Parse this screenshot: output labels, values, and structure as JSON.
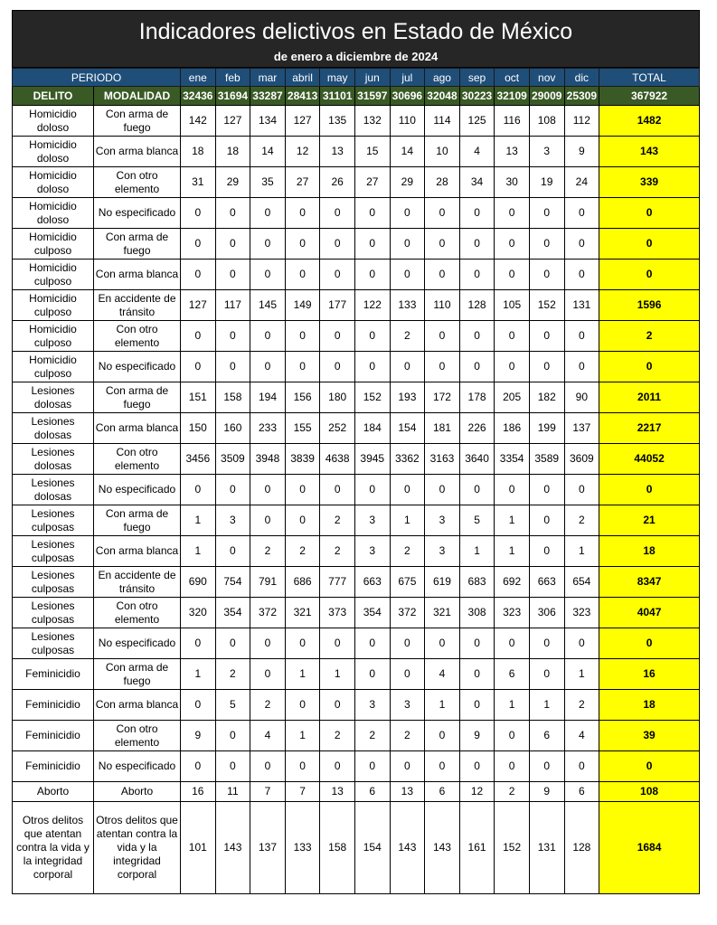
{
  "title": "Indicadores delictivos en Estado de México",
  "subtitle": "de enero a diciembre de 2024",
  "header": {
    "periodo": "PERIODO",
    "months": [
      "ene",
      "feb",
      "mar",
      "abril",
      "may",
      "jun",
      "jul",
      "ago",
      "sep",
      "oct",
      "nov",
      "dic"
    ],
    "total": "TOTAL"
  },
  "totals_row": {
    "delito": "DELITO",
    "modalidad": "MODALIDAD",
    "values": [
      "32436",
      "31694",
      "33287",
      "28413",
      "31101",
      "31597",
      "30696",
      "32048",
      "30223",
      "32109",
      "29009",
      "25309"
    ],
    "total": "367922"
  },
  "colors": {
    "title_bg": "#262626",
    "header_bg": "#1f4e79",
    "totals_bg": "#3a5a25",
    "total_col": "#ffff00"
  },
  "rows": [
    {
      "delito": "Homicidio doloso",
      "modalidad": "Con arma de fuego",
      "values": [
        "142",
        "127",
        "134",
        "127",
        "135",
        "132",
        "110",
        "114",
        "125",
        "116",
        "108",
        "112"
      ],
      "total": "1482"
    },
    {
      "delito": "Homicidio doloso",
      "modalidad": "Con arma blanca",
      "values": [
        "18",
        "18",
        "14",
        "12",
        "13",
        "15",
        "14",
        "10",
        "4",
        "13",
        "3",
        "9"
      ],
      "total": "143"
    },
    {
      "delito": "Homicidio doloso",
      "modalidad": "Con otro elemento",
      "values": [
        "31",
        "29",
        "35",
        "27",
        "26",
        "27",
        "29",
        "28",
        "34",
        "30",
        "19",
        "24"
      ],
      "total": "339"
    },
    {
      "delito": "Homicidio doloso",
      "modalidad": "No especificado",
      "values": [
        "0",
        "0",
        "0",
        "0",
        "0",
        "0",
        "0",
        "0",
        "0",
        "0",
        "0",
        "0"
      ],
      "total": "0"
    },
    {
      "delito": "Homicidio culposo",
      "modalidad": "Con arma de fuego",
      "values": [
        "0",
        "0",
        "0",
        "0",
        "0",
        "0",
        "0",
        "0",
        "0",
        "0",
        "0",
        "0"
      ],
      "total": "0"
    },
    {
      "delito": "Homicidio culposo",
      "modalidad": "Con arma blanca",
      "values": [
        "0",
        "0",
        "0",
        "0",
        "0",
        "0",
        "0",
        "0",
        "0",
        "0",
        "0",
        "0"
      ],
      "total": "0"
    },
    {
      "delito": "Homicidio culposo",
      "modalidad": "En accidente de tránsito",
      "values": [
        "127",
        "117",
        "145",
        "149",
        "177",
        "122",
        "133",
        "110",
        "128",
        "105",
        "152",
        "131"
      ],
      "total": "1596"
    },
    {
      "delito": "Homicidio culposo",
      "modalidad": "Con otro elemento",
      "values": [
        "0",
        "0",
        "0",
        "0",
        "0",
        "0",
        "2",
        "0",
        "0",
        "0",
        "0",
        "0"
      ],
      "total": "2"
    },
    {
      "delito": "Homicidio culposo",
      "modalidad": "No especificado",
      "values": [
        "0",
        "0",
        "0",
        "0",
        "0",
        "0",
        "0",
        "0",
        "0",
        "0",
        "0",
        "0"
      ],
      "total": "0"
    },
    {
      "delito": "Lesiones dolosas",
      "modalidad": "Con arma de fuego",
      "values": [
        "151",
        "158",
        "194",
        "156",
        "180",
        "152",
        "193",
        "172",
        "178",
        "205",
        "182",
        "90"
      ],
      "total": "2011"
    },
    {
      "delito": "Lesiones dolosas",
      "modalidad": "Con arma blanca",
      "values": [
        "150",
        "160",
        "233",
        "155",
        "252",
        "184",
        "154",
        "181",
        "226",
        "186",
        "199",
        "137"
      ],
      "total": "2217"
    },
    {
      "delito": "Lesiones dolosas",
      "modalidad": "Con otro elemento",
      "values": [
        "3456",
        "3509",
        "3948",
        "3839",
        "4638",
        "3945",
        "3362",
        "3163",
        "3640",
        "3354",
        "3589",
        "3609"
      ],
      "total": "44052"
    },
    {
      "delito": "Lesiones dolosas",
      "modalidad": "No especificado",
      "values": [
        "0",
        "0",
        "0",
        "0",
        "0",
        "0",
        "0",
        "0",
        "0",
        "0",
        "0",
        "0"
      ],
      "total": "0"
    },
    {
      "delito": "Lesiones culposas",
      "modalidad": "Con arma de fuego",
      "values": [
        "1",
        "3",
        "0",
        "0",
        "2",
        "3",
        "1",
        "3",
        "5",
        "1",
        "0",
        "2"
      ],
      "total": "21"
    },
    {
      "delito": "Lesiones culposas",
      "modalidad": "Con arma blanca",
      "values": [
        "1",
        "0",
        "2",
        "2",
        "2",
        "3",
        "2",
        "3",
        "1",
        "1",
        "0",
        "1"
      ],
      "total": "18"
    },
    {
      "delito": "Lesiones culposas",
      "modalidad": "En accidente de tránsito",
      "values": [
        "690",
        "754",
        "791",
        "686",
        "777",
        "663",
        "675",
        "619",
        "683",
        "692",
        "663",
        "654"
      ],
      "total": "8347"
    },
    {
      "delito": "Lesiones culposas",
      "modalidad": "Con otro elemento",
      "values": [
        "320",
        "354",
        "372",
        "321",
        "373",
        "354",
        "372",
        "321",
        "308",
        "323",
        "306",
        "323"
      ],
      "total": "4047"
    },
    {
      "delito": "Lesiones culposas",
      "modalidad": "No especificado",
      "values": [
        "0",
        "0",
        "0",
        "0",
        "0",
        "0",
        "0",
        "0",
        "0",
        "0",
        "0",
        "0"
      ],
      "total": "0"
    },
    {
      "delito": "Feminicidio",
      "modalidad": "Con arma de fuego",
      "values": [
        "1",
        "2",
        "0",
        "1",
        "1",
        "0",
        "0",
        "4",
        "0",
        "6",
        "0",
        "1"
      ],
      "total": "16"
    },
    {
      "delito": "Feminicidio",
      "modalidad": "Con arma blanca",
      "values": [
        "0",
        "5",
        "2",
        "0",
        "0",
        "3",
        "3",
        "1",
        "0",
        "1",
        "1",
        "2"
      ],
      "total": "18"
    },
    {
      "delito": "Feminicidio",
      "modalidad": "Con otro elemento",
      "values": [
        "9",
        "0",
        "4",
        "1",
        "2",
        "2",
        "2",
        "0",
        "9",
        "0",
        "6",
        "4"
      ],
      "total": "39"
    },
    {
      "delito": "Feminicidio",
      "modalidad": "No especificado",
      "values": [
        "0",
        "0",
        "0",
        "0",
        "0",
        "0",
        "0",
        "0",
        "0",
        "0",
        "0",
        "0"
      ],
      "total": "0"
    },
    {
      "delito": "Aborto",
      "modalidad": "Aborto",
      "values": [
        "16",
        "11",
        "7",
        "7",
        "13",
        "6",
        "13",
        "6",
        "12",
        "2",
        "9",
        "6"
      ],
      "total": "108"
    },
    {
      "delito": "Otros delitos que atentan contra la vida y la integridad corporal",
      "modalidad": "Otros delitos que atentan contra la vida y la integridad corporal",
      "values": [
        "101",
        "143",
        "137",
        "133",
        "158",
        "154",
        "143",
        "143",
        "161",
        "152",
        "131",
        "128"
      ],
      "total": "1684"
    }
  ]
}
